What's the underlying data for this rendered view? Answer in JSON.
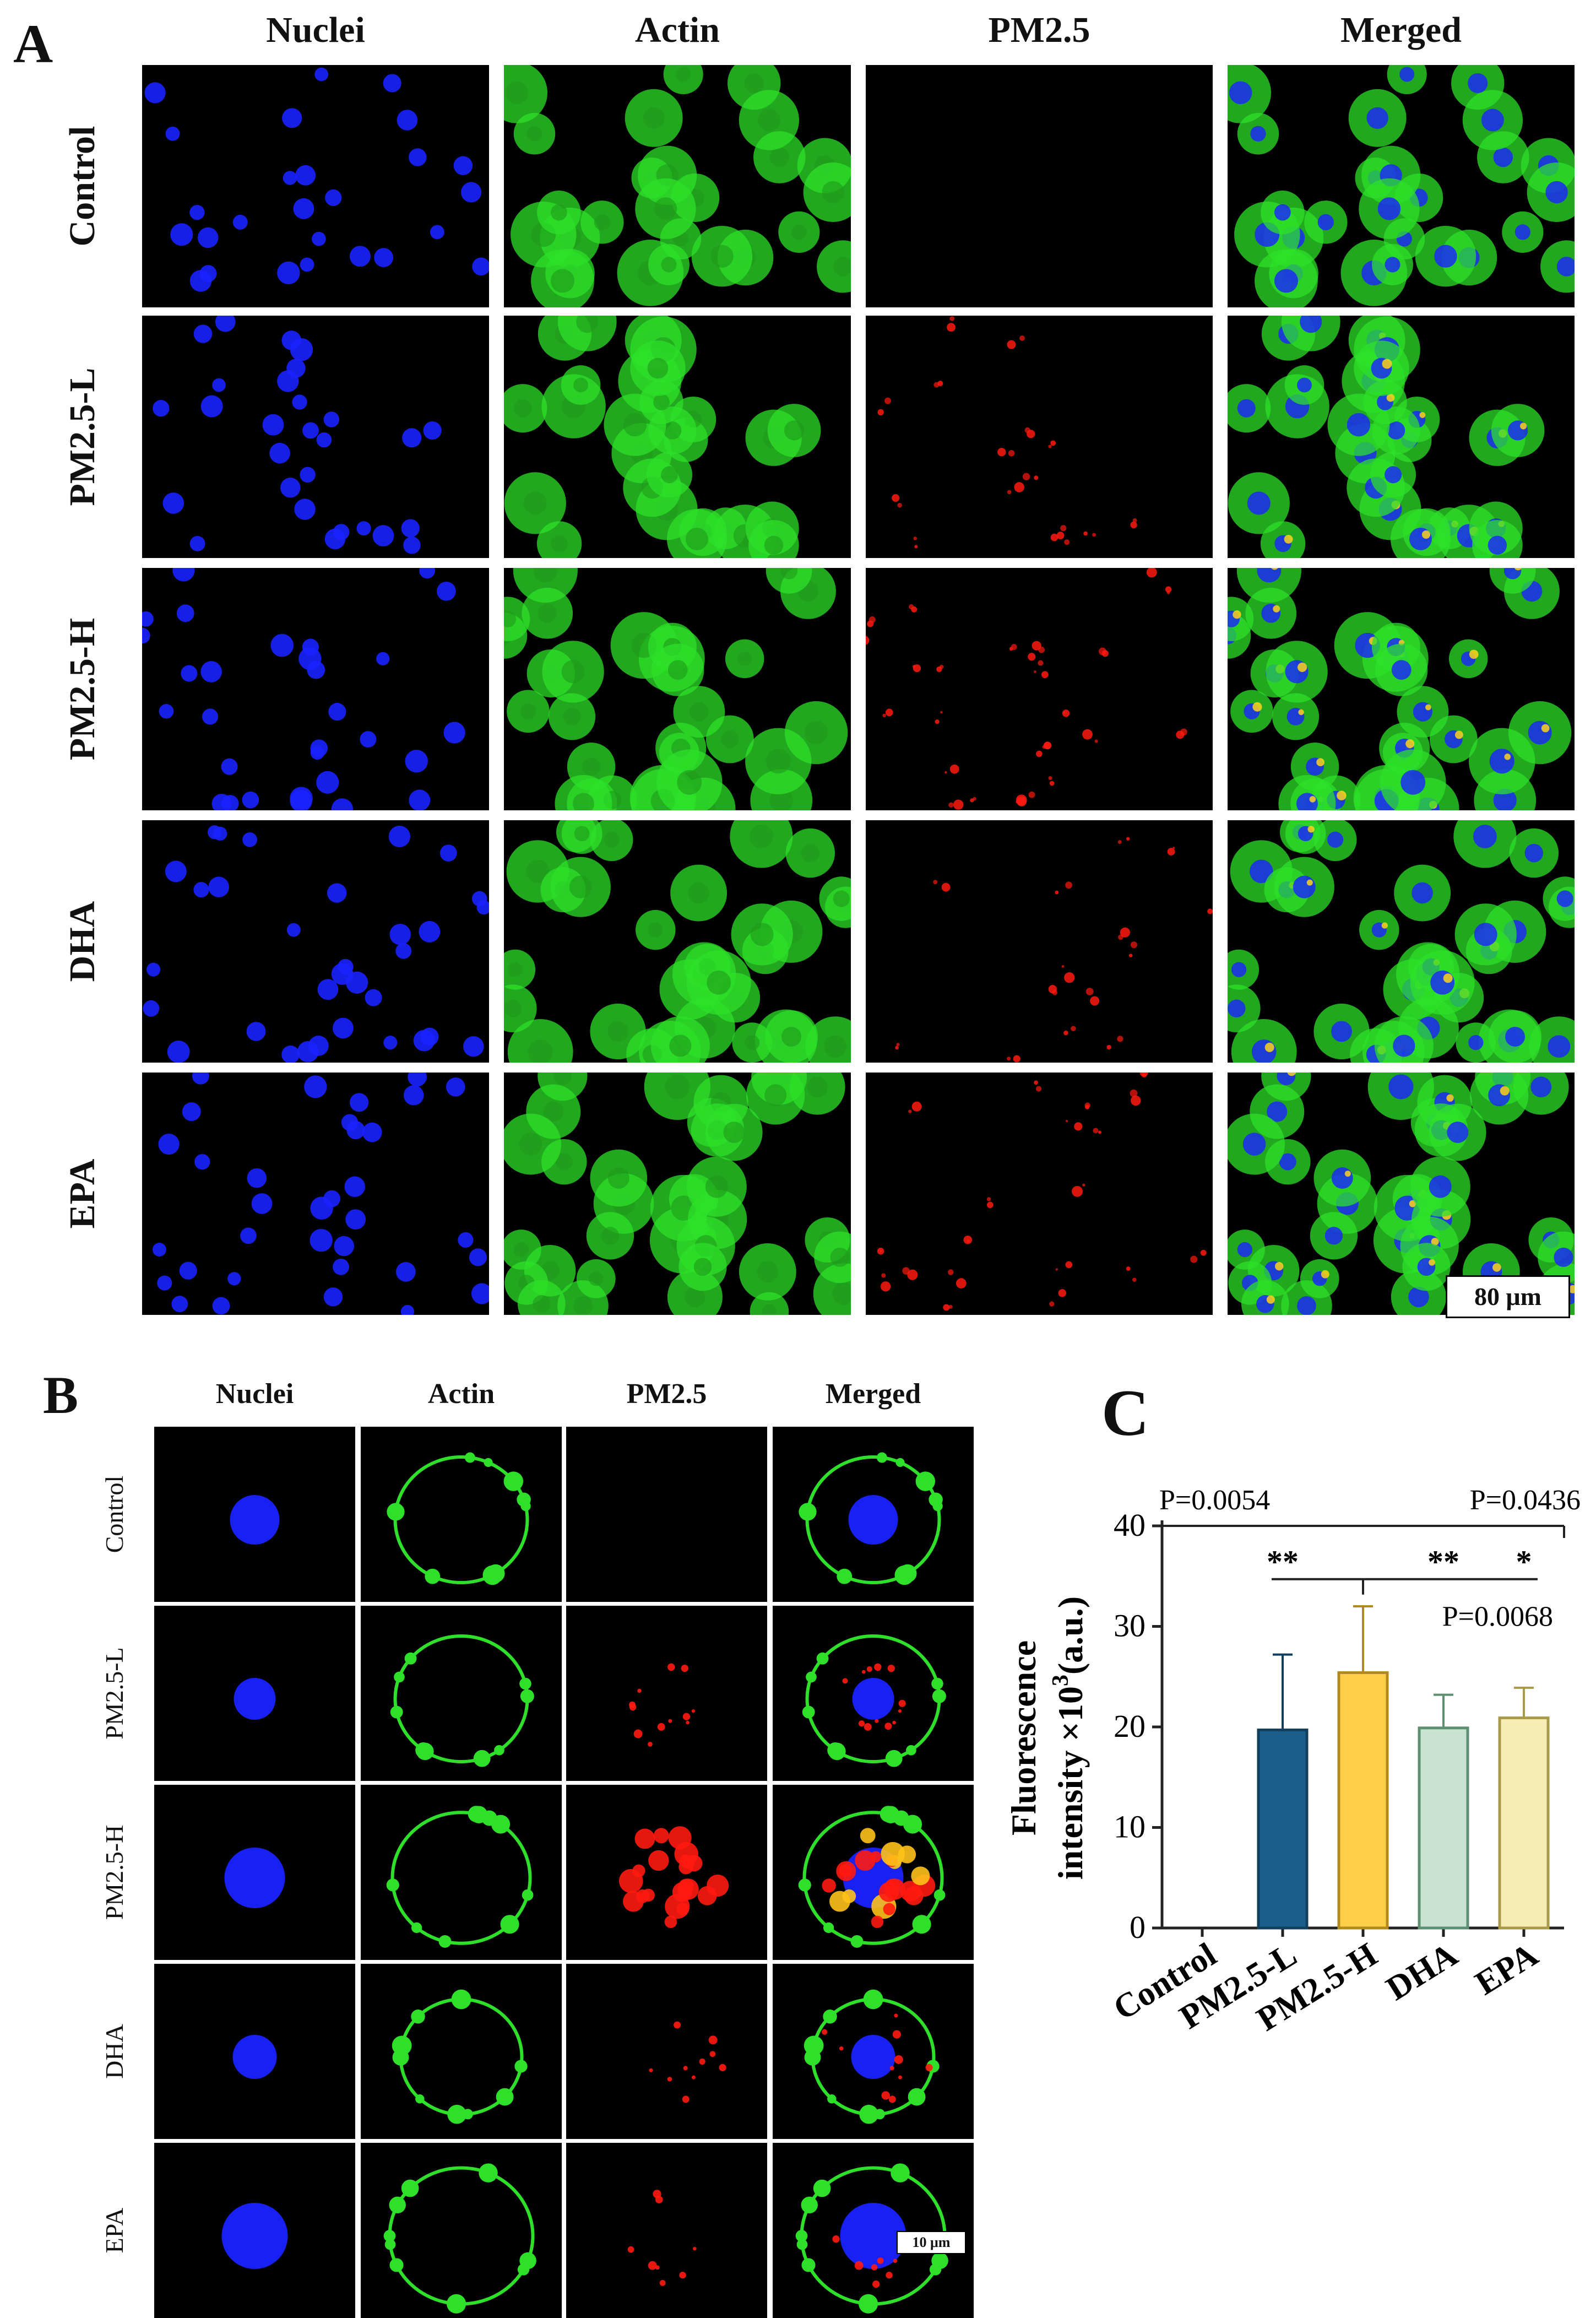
{
  "panel_labels": {
    "a": "A",
    "b": "B",
    "c": "C"
  },
  "panel_a": {
    "columns": [
      "Nuclei",
      "Actin",
      "PM2.5",
      "Merged"
    ],
    "rows": [
      "Control",
      "PM2.5-L",
      "PM2.5-H",
      "DHA",
      "EPA"
    ],
    "scale_bar": "80 μm"
  },
  "panel_b": {
    "columns": [
      "Nuclei",
      "Actin",
      "PM2.5",
      "Merged"
    ],
    "rows": [
      "Control",
      "PM2.5-L",
      "PM2.5-H",
      "DHA",
      "EPA"
    ],
    "scale_bar": "10 μm"
  },
  "colors": {
    "nuclei": "#1a22ff",
    "actin": "#2ee02a",
    "pm25": "#ff1a10",
    "bar_pm25_l": "#1b5e8c",
    "bar_pm25_h": "#ffcf4a",
    "bar_dha": "#c9e3d3",
    "bar_epa": "#f7edb4"
  },
  "chart_data": {
    "type": "bar",
    "categories": [
      "Control",
      "PM2.5-L",
      "PM2.5-H",
      "DHA",
      "EPA"
    ],
    "values": [
      0,
      19.7,
      25.4,
      19.9,
      20.9
    ],
    "error_bars": [
      0,
      7.5,
      6.6,
      3.3,
      3.0
    ],
    "ylabel_line1": "Fluorescence",
    "ylabel_line2_prefix": "intensity ×10",
    "ylabel_sup": "3",
    "ylabel_line2_suffix": "(a.u.)",
    "ylim": [
      0,
      40
    ],
    "yticks": [
      "0",
      "10",
      "20",
      "30",
      "40"
    ],
    "annotations": {
      "p_control": "P=0.0054",
      "p_epa": "P=0.0436",
      "p_dha": "P=0.0068",
      "sig_pm25_l": "**",
      "sig_dha": "**",
      "sig_epa": "*"
    }
  }
}
